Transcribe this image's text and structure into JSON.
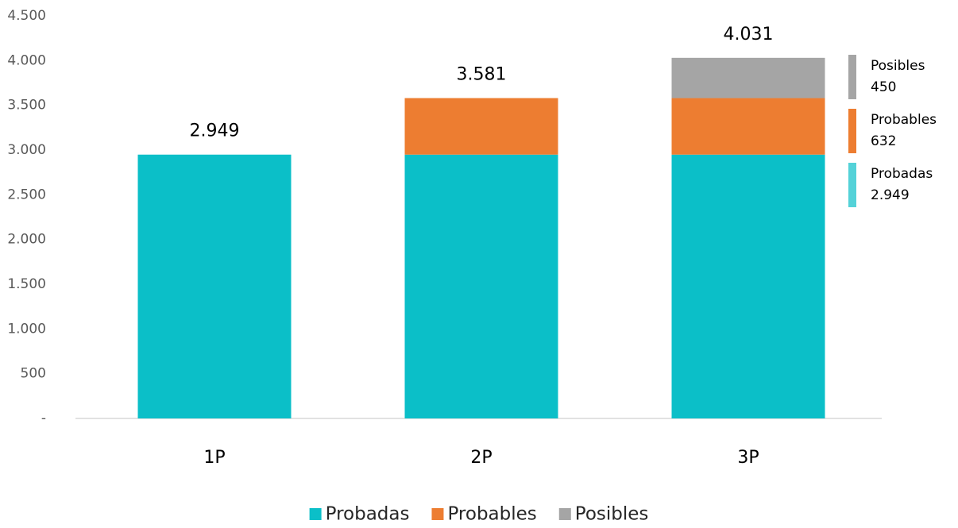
{
  "chart_data": {
    "type": "stacked_bar",
    "categories": [
      "1P",
      "2P",
      "3P"
    ],
    "series": [
      {
        "name": "Probadas",
        "color": "#0bbfc8",
        "values": [
          2949,
          2949,
          2949
        ],
        "end_label": "2.949"
      },
      {
        "name": "Probables",
        "color": "#ed7d31",
        "values": [
          null,
          632,
          632
        ],
        "end_label": "632"
      },
      {
        "name": "Posibles",
        "color": "#a5a5a5",
        "values": [
          null,
          null,
          450
        ],
        "end_label": "450"
      }
    ],
    "totals": {
      "values": [
        2949,
        3581,
        4031
      ],
      "value_labels": [
        "2.949",
        "3.581",
        "4.031"
      ]
    },
    "ylim": [
      0,
      4500
    ],
    "yticks": [
      {
        "value": 0,
        "label": "-"
      },
      500,
      {
        "value": 1000,
        "label": "1.000"
      },
      {
        "value": 1500,
        "label": "1.500"
      },
      {
        "value": 2000,
        "label": "2.000"
      },
      {
        "value": 2500,
        "label": "2.500"
      },
      {
        "value": 3000,
        "label": "3.000"
      },
      {
        "value": 3500,
        "label": "3.500"
      },
      {
        "value": 4000,
        "label": "4.000"
      },
      {
        "value": 4500,
        "label": "4.500"
      }
    ],
    "grid": false,
    "legend": "bottom"
  }
}
